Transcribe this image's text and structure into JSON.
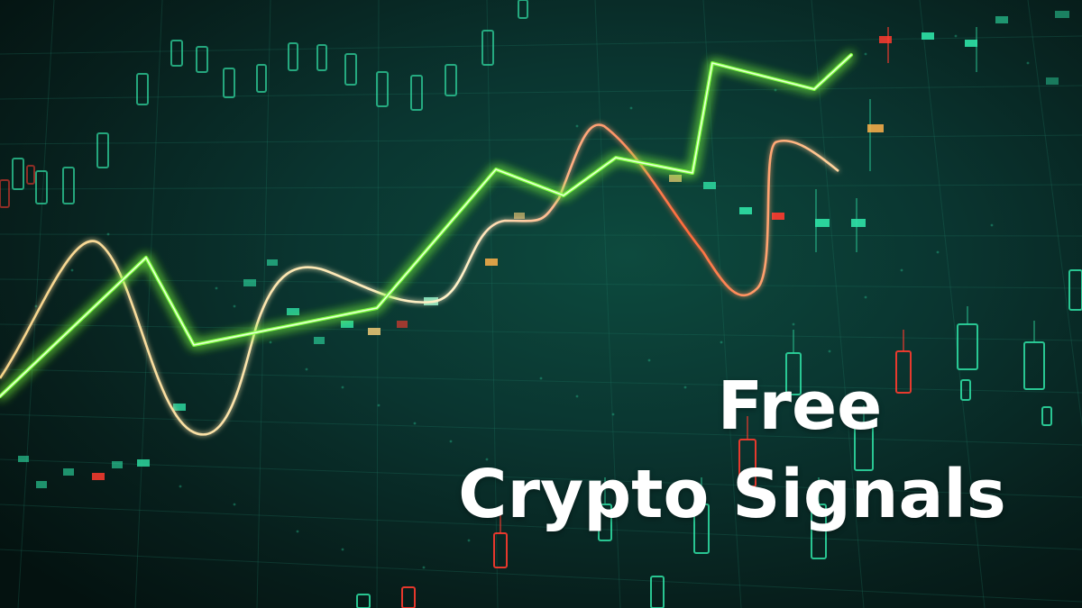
{
  "headline": {
    "line1": "Free",
    "line2": "Crypto Signals"
  },
  "colors": {
    "background": "#0a3530",
    "price_line": "#6bff3a",
    "oscillator_line": "#ffe6b0",
    "candle_up": "#22e0a0",
    "candle_down": "#ff3b2f",
    "grid": "#1c6b5c",
    "text": "#ffffff"
  }
}
